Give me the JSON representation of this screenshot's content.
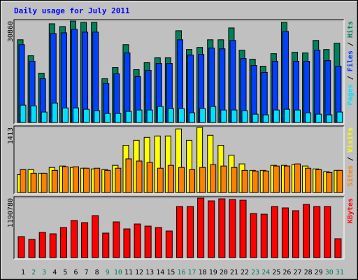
{
  "chart_data": [
    {
      "type": "bar",
      "title": "Daily usage for July 2011",
      "legend_separator": " / ",
      "ylim": [
        0,
        30860
      ],
      "yticks": [
        30860
      ],
      "series": [
        {
          "name": "Hits",
          "color": "#00805c",
          "values": [
            25157,
            20294,
            15009,
            30019,
            29173,
            30860,
            30442,
            30442,
            13318,
            16700,
            23677,
            16066,
            18180,
            19660,
            19660,
            27905,
            22197,
            22831,
            25157,
            25157,
            28750,
            21986,
            19237,
            17123,
            20929,
            30442,
            21351,
            21140,
            24945,
            22197,
            24100
          ]
        },
        {
          "name": "Files",
          "color": "#0040ff",
          "values": [
            23677,
            18603,
            13318,
            27059,
            27271,
            28328,
            27482,
            27482,
            11838,
            14798,
            21140,
            13952,
            15855,
            17969,
            17969,
            25157,
            20506,
            20717,
            22620,
            22408,
            24945,
            19449,
            17335,
            15221,
            18603,
            27693,
            18603,
            18603,
            21986,
            18815,
            17123
          ]
        },
        {
          "name": "Pages",
          "color": "#00e0ff",
          "values": [
            5285,
            5074,
            3171,
            5919,
            4439,
            4439,
            4017,
            3594,
            2748,
            2748,
            3382,
            3805,
            3805,
            4862,
            4228,
            4228,
            2960,
            4228,
            4862,
            3805,
            3805,
            3594,
            2537,
            2325,
            3805,
            4017,
            3805,
            2960,
            2537,
            2325,
            3171
          ]
        }
      ]
    },
    {
      "type": "bar",
      "legend_separator": " / ",
      "ylim": [
        0,
        1413
      ],
      "yticks": [
        1413
      ],
      "series": [
        {
          "name": "Visits",
          "color": "#ffff00",
          "values": [
            388,
            497,
            419,
            544,
            575,
            544,
            528,
            512,
            497,
            590,
            1025,
            1134,
            1196,
            1227,
            1227,
            1380,
            1134,
            1413,
            1242,
            1025,
            808,
            621,
            481,
            481,
            590,
            590,
            606,
            575,
            512,
            450,
            481
          ]
        },
        {
          "name": "Sites",
          "color": "#ff8000",
          "values": [
            497,
            419,
            419,
            481,
            559,
            559,
            528,
            528,
            481,
            528,
            730,
            683,
            652,
            528,
            590,
            544,
            497,
            544,
            606,
            575,
            544,
            481,
            466,
            466,
            575,
            575,
            621,
            528,
            497,
            435,
            481
          ]
        }
      ]
    },
    {
      "type": "bar",
      "ylim": [
        0,
        1190780
      ],
      "yticks": [
        1190780
      ],
      "categories": [
        "1",
        "2",
        "3",
        "4",
        "5",
        "6",
        "7",
        "8",
        "9",
        "10",
        "11",
        "12",
        "13",
        "14",
        "15",
        "16",
        "17",
        "18",
        "19",
        "20",
        "21",
        "22",
        "23",
        "24",
        "25",
        "26",
        "27",
        "28",
        "29",
        "30",
        "31"
      ],
      "label_colors": [
        "#000000",
        "#00805c",
        "#00805c",
        "#000000",
        "#000000",
        "#000000",
        "#000000",
        "#000000",
        "#00805c",
        "#00805c",
        "#000000",
        "#000000",
        "#000000",
        "#000000",
        "#000000",
        "#00805c",
        "#00805c",
        "#000000",
        "#000000",
        "#000000",
        "#000000",
        "#000000",
        "#00805c",
        "#00805c",
        "#000000",
        "#000000",
        "#000000",
        "#000000",
        "#000000",
        "#00805c",
        "#00805c"
      ],
      "series": [
        {
          "name": "KBytes",
          "color": "#ff0000",
          "values": [
            420270,
            364234,
            504324,
            476306,
            602387,
            742477,
            700450,
            840540,
            490315,
            714459,
            574369,
            672432,
            630405,
            602387,
            532342,
            1022657,
            1022657,
            1190780,
            1134729,
            1176000,
            1162747,
            1148738,
            882567,
            868558,
            1022657,
            994639,
            938603,
            1064684,
            1022657,
            1022657,
            378243
          ]
        }
      ]
    }
  ]
}
